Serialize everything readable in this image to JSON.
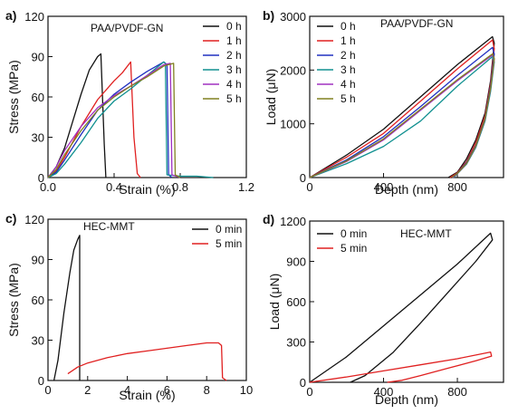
{
  "chart_data": [
    {
      "panel": "a)",
      "type": "line",
      "annotation": "PAA/PVDF-GN",
      "xlabel": "Strain (%)",
      "ylabel": "Stress (MPa)",
      "xlim": [
        0,
        1.2
      ],
      "ylim": [
        0,
        120
      ],
      "xticks": [
        0.0,
        0.4,
        0.8,
        1.2
      ],
      "xtick_labels": [
        "0.0",
        "0.4",
        "0.8",
        "1.2"
      ],
      "yticks": [
        0,
        30,
        60,
        90,
        120
      ],
      "ytick_labels": [
        "0",
        "30",
        "60",
        "90",
        "120"
      ],
      "legend": "top-right",
      "series": [
        {
          "name": "0 h",
          "color": "#111111",
          "x": [
            0,
            0.05,
            0.1,
            0.15,
            0.2,
            0.25,
            0.3,
            0.32,
            0.34,
            0.35
          ],
          "y": [
            0,
            8,
            22,
            42,
            62,
            80,
            90,
            92,
            25,
            0
          ]
        },
        {
          "name": "1 h",
          "color": "#e02020",
          "x": [
            0,
            0.05,
            0.1,
            0.2,
            0.3,
            0.4,
            0.45,
            0.5,
            0.52,
            0.54,
            0.56
          ],
          "y": [
            0,
            5,
            15,
            38,
            58,
            72,
            78,
            86,
            30,
            3,
            0
          ]
        },
        {
          "name": "2 h",
          "color": "#2030c0",
          "x": [
            0,
            0.05,
            0.1,
            0.2,
            0.3,
            0.4,
            0.5,
            0.6,
            0.7,
            0.72,
            0.73,
            0.75
          ],
          "y": [
            0,
            4,
            13,
            32,
            50,
            62,
            71,
            79,
            86,
            84,
            2,
            0
          ]
        },
        {
          "name": "3 h",
          "color": "#109090",
          "x": [
            0,
            0.05,
            0.1,
            0.2,
            0.3,
            0.4,
            0.5,
            0.6,
            0.7,
            0.71,
            0.72,
            0.8,
            0.9,
            1.0
          ],
          "y": [
            0,
            3,
            10,
            26,
            44,
            57,
            66,
            76,
            86,
            85,
            2,
            1,
            1,
            0
          ]
        },
        {
          "name": "4 h",
          "color": "#a030c0",
          "x": [
            0,
            0.05,
            0.1,
            0.2,
            0.3,
            0.4,
            0.5,
            0.6,
            0.7,
            0.74,
            0.75,
            0.8
          ],
          "y": [
            0,
            8,
            20,
            38,
            52,
            61,
            68,
            76,
            84,
            85,
            2,
            0
          ]
        },
        {
          "name": "5 h",
          "color": "#808020",
          "x": [
            0,
            0.05,
            0.1,
            0.2,
            0.3,
            0.4,
            0.5,
            0.6,
            0.7,
            0.76,
            0.77,
            0.8
          ],
          "y": [
            0,
            6,
            17,
            35,
            50,
            60,
            68,
            75,
            83,
            85,
            2,
            0
          ]
        }
      ]
    },
    {
      "panel": "b)",
      "type": "line",
      "annotation": "PAA/PVDF-GN",
      "xlabel": "Depth (nm)",
      "ylabel": "Load (μN)",
      "xlim": [
        0,
        1050
      ],
      "ylim": [
        0,
        3000
      ],
      "xticks": [
        0,
        400,
        800
      ],
      "xtick_labels": [
        "0",
        "400",
        "800"
      ],
      "yticks": [
        0,
        1000,
        2000,
        3000
      ],
      "ytick_labels": [
        "0",
        "1000",
        "2000",
        "3000"
      ],
      "legend": "top-left",
      "series": [
        {
          "name": "0 h",
          "color": "#111111",
          "x": [
            0,
            200,
            400,
            600,
            800,
            990,
            1000,
            980,
            950,
            900,
            850,
            800,
            750
          ],
          "y": [
            0,
            420,
            900,
            1500,
            2100,
            2620,
            2500,
            1800,
            1200,
            700,
            350,
            100,
            0
          ]
        },
        {
          "name": "1 h",
          "color": "#e02020",
          "x": [
            0,
            200,
            400,
            600,
            800,
            990,
            1000,
            980,
            950,
            900,
            850,
            800,
            760
          ],
          "y": [
            0,
            380,
            820,
            1420,
            2020,
            2560,
            2400,
            1750,
            1150,
            650,
            300,
            90,
            0
          ]
        },
        {
          "name": "2 h",
          "color": "#2030c0",
          "x": [
            0,
            200,
            400,
            600,
            800,
            990,
            1000,
            980,
            950,
            900,
            850,
            800,
            770
          ],
          "y": [
            0,
            330,
            760,
            1320,
            1900,
            2420,
            2300,
            1700,
            1100,
            600,
            280,
            80,
            0
          ]
        },
        {
          "name": "3 h",
          "color": "#109090",
          "x": [
            0,
            200,
            400,
            600,
            800,
            990,
            1000,
            980,
            950,
            900,
            850,
            800,
            780
          ],
          "y": [
            0,
            260,
            580,
            1050,
            1700,
            2250,
            2150,
            1600,
            1050,
            560,
            250,
            70,
            0
          ]
        },
        {
          "name": "4 h",
          "color": "#a030c0",
          "x": [
            0,
            200,
            400,
            600,
            800,
            990,
            1000,
            980,
            950,
            900,
            850,
            800,
            775
          ],
          "y": [
            0,
            300,
            700,
            1250,
            1800,
            2280,
            2200,
            1650,
            1080,
            580,
            260,
            75,
            0
          ]
        },
        {
          "name": "5 h",
          "color": "#808020",
          "x": [
            0,
            200,
            400,
            600,
            800,
            990,
            1000,
            980,
            950,
            900,
            850,
            800,
            770
          ],
          "y": [
            0,
            310,
            720,
            1270,
            1820,
            2300,
            2220,
            1660,
            1090,
            590,
            265,
            78,
            0
          ]
        }
      ]
    },
    {
      "panel": "c)",
      "type": "line",
      "annotation": "HEC-MMT",
      "xlabel": "Strain (%)",
      "ylabel": "Stress (MPa)",
      "xlim": [
        0,
        10
      ],
      "ylim": [
        0,
        120
      ],
      "xticks": [
        0,
        2,
        4,
        6,
        8,
        10
      ],
      "xtick_labels": [
        "0",
        "2",
        "4",
        "6",
        "8",
        "10"
      ],
      "yticks": [
        0,
        30,
        60,
        90,
        120
      ],
      "ytick_labels": [
        "0",
        "30",
        "60",
        "90",
        "120"
      ],
      "legend": "top-right",
      "series": [
        {
          "name": "0 min",
          "color": "#111111",
          "x": [
            0.3,
            0.5,
            0.8,
            1.1,
            1.3,
            1.5,
            1.6,
            1.6
          ],
          "y": [
            0,
            15,
            50,
            80,
            97,
            105,
            108,
            0
          ]
        },
        {
          "name": "5 min",
          "color": "#e02020",
          "x": [
            1.0,
            1.5,
            2,
            3,
            4,
            5,
            6,
            7,
            8,
            8.6,
            8.75,
            8.8,
            9.0
          ],
          "y": [
            5,
            10,
            13,
            17,
            20,
            22,
            24,
            26,
            28,
            28,
            26,
            2,
            0
          ]
        }
      ]
    },
    {
      "panel": "d)",
      "type": "line",
      "annotation": "HEC-MMT",
      "xlabel": "Depth (nm)",
      "ylabel": "Load (μN)",
      "xlim": [
        0,
        1050
      ],
      "ylim": [
        0,
        1200
      ],
      "xticks": [
        0,
        400,
        800
      ],
      "xtick_labels": [
        "0",
        "400",
        "800"
      ],
      "yticks": [
        0,
        300,
        600,
        900,
        1200
      ],
      "ytick_labels": [
        "0",
        "300",
        "600",
        "900",
        "1200"
      ],
      "legend": "top-left",
      "series": [
        {
          "name": "0 min",
          "color": "#111111",
          "x": [
            0,
            200,
            400,
            600,
            800,
            980,
            990,
            900,
            750,
            600,
            450,
            300,
            220
          ],
          "y": [
            0,
            190,
            420,
            650,
            880,
            1110,
            1060,
            900,
            670,
            440,
            220,
            50,
            0
          ]
        },
        {
          "name": "5 min",
          "color": "#e02020",
          "x": [
            0,
            200,
            400,
            600,
            800,
            980,
            985,
            900,
            750,
            600,
            500,
            420
          ],
          "y": [
            0,
            40,
            85,
            130,
            175,
            225,
            195,
            160,
            105,
            50,
            15,
            0
          ]
        }
      ]
    }
  ]
}
